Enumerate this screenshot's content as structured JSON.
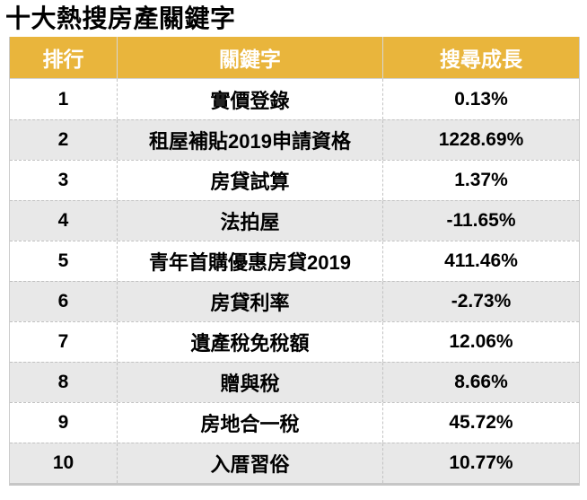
{
  "title": "十大熱搜房產關鍵字",
  "colors": {
    "header_bg": "#E9B53C",
    "header_text": "#FFFFFF",
    "alt_row_bg": "#E8E8E8",
    "row_bg": "#FFFFFF",
    "border": "#C2C2C2",
    "text": "#000000"
  },
  "table": {
    "columns": {
      "rank": "排行",
      "keyword": "關鍵字",
      "growth": "搜尋成長"
    },
    "rows": [
      {
        "rank": "1",
        "keyword": "實價登錄",
        "growth": "0.13%"
      },
      {
        "rank": "2",
        "keyword": "租屋補貼2019申請資格",
        "growth": "1228.69%"
      },
      {
        "rank": "3",
        "keyword": "房貸試算",
        "growth": "1.37%"
      },
      {
        "rank": "4",
        "keyword": "法拍屋",
        "growth": "-11.65%"
      },
      {
        "rank": "5",
        "keyword": "青年首購優惠房貸2019",
        "growth": "411.46%"
      },
      {
        "rank": "6",
        "keyword": "房貸利率",
        "growth": "-2.73%"
      },
      {
        "rank": "7",
        "keyword": "遺產稅免稅額",
        "growth": "12.06%"
      },
      {
        "rank": "8",
        "keyword": "贈與稅",
        "growth": "8.66%"
      },
      {
        "rank": "9",
        "keyword": "房地合一稅",
        "growth": "45.72%"
      },
      {
        "rank": "10",
        "keyword": "入厝習俗",
        "growth": "10.77%"
      }
    ]
  },
  "chart_data": {
    "type": "table",
    "title": "十大熱搜房產關鍵字",
    "columns": [
      "排行",
      "關鍵字",
      "搜尋成長"
    ],
    "rows": [
      [
        1,
        "實價登錄",
        "0.13%"
      ],
      [
        2,
        "租屋補貼2019申請資格",
        "1228.69%"
      ],
      [
        3,
        "房貸試算",
        "1.37%"
      ],
      [
        4,
        "法拍屋",
        "-11.65%"
      ],
      [
        5,
        "青年首購優惠房貸2019",
        "411.46%"
      ],
      [
        6,
        "房貸利率",
        "-2.73%"
      ],
      [
        7,
        "遺產稅免稅額",
        "12.06%"
      ],
      [
        8,
        "贈與稅",
        "8.66%"
      ],
      [
        9,
        "房地合一稅",
        "45.72%"
      ],
      [
        10,
        "入厝習俗",
        "10.77%"
      ]
    ],
    "growth_values_percent": [
      0.13,
      1228.69,
      1.37,
      -11.65,
      411.46,
      -2.73,
      12.06,
      8.66,
      45.72,
      10.77
    ],
    "layout": {
      "header_style": "gold-band",
      "zebra_striping": true,
      "alignment": "center"
    }
  }
}
